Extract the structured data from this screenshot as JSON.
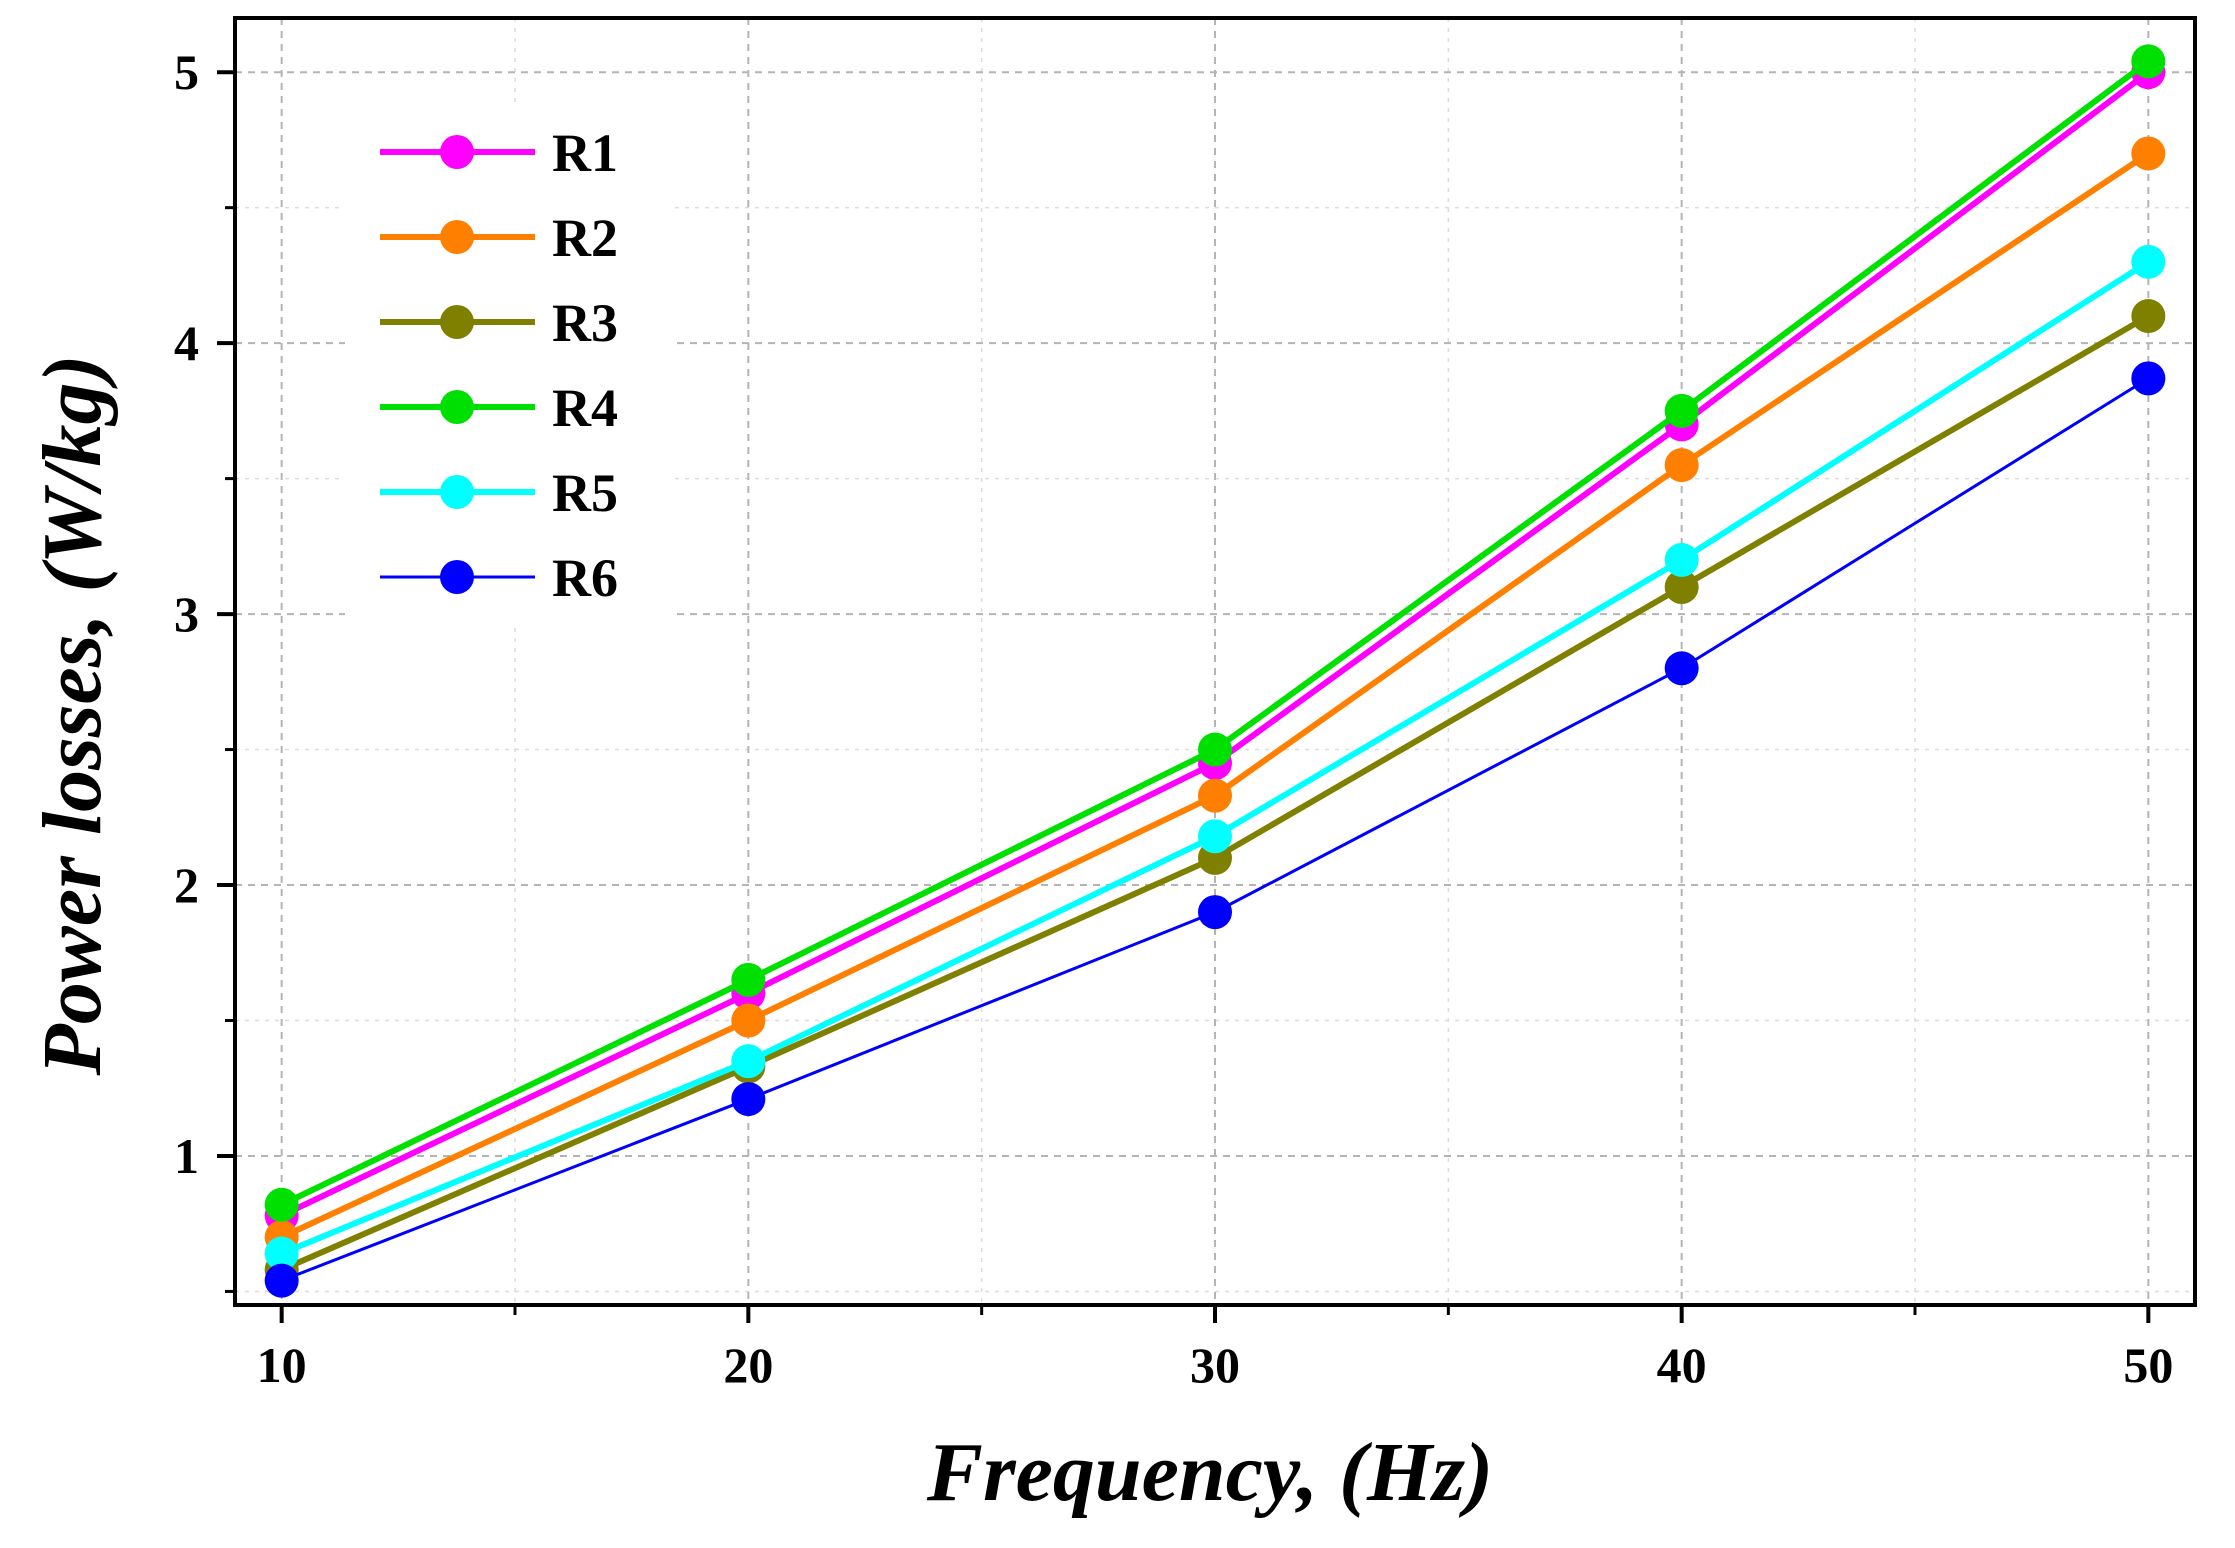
{
  "chart_data": {
    "type": "line",
    "title": "",
    "xlabel": "Frequency, (Hz)",
    "ylabel": "Power losses, (W/kg)",
    "x": [
      10,
      20,
      30,
      40,
      50
    ],
    "xlim": [
      9,
      51
    ],
    "ylim": [
      0.45,
      5.2
    ],
    "x_ticks": [
      10,
      20,
      30,
      40,
      50
    ],
    "x_tick_labels": [
      "10",
      "20",
      "30",
      "40",
      "50"
    ],
    "x_minor_ticks": [
      15,
      25,
      35,
      45
    ],
    "y_ticks": [
      1,
      2,
      3,
      4,
      5
    ],
    "y_tick_labels": [
      "1",
      "2",
      "3",
      "4",
      "5"
    ],
    "y_minor_ticks": [
      0.5,
      1.5,
      2.5,
      3.5,
      4.5
    ],
    "grid": true,
    "legend_position": "top-left",
    "series": [
      {
        "name": "R1",
        "color": "#ff00ff",
        "values": [
          0.78,
          1.6,
          2.45,
          3.7,
          5.0
        ]
      },
      {
        "name": "R2",
        "color": "#ff8000",
        "values": [
          0.7,
          1.5,
          2.33,
          3.55,
          4.7
        ]
      },
      {
        "name": "R3",
        "color": "#808000",
        "values": [
          0.58,
          1.33,
          2.1,
          3.1,
          4.1
        ]
      },
      {
        "name": "R4",
        "color": "#00e000",
        "values": [
          0.82,
          1.65,
          2.5,
          3.75,
          5.04
        ]
      },
      {
        "name": "R5",
        "color": "#00ffff",
        "values": [
          0.64,
          1.35,
          2.18,
          3.2,
          4.3
        ]
      },
      {
        "name": "R6",
        "color": "#0000ff",
        "values": [
          0.54,
          1.21,
          1.9,
          2.8,
          3.87
        ]
      }
    ]
  }
}
